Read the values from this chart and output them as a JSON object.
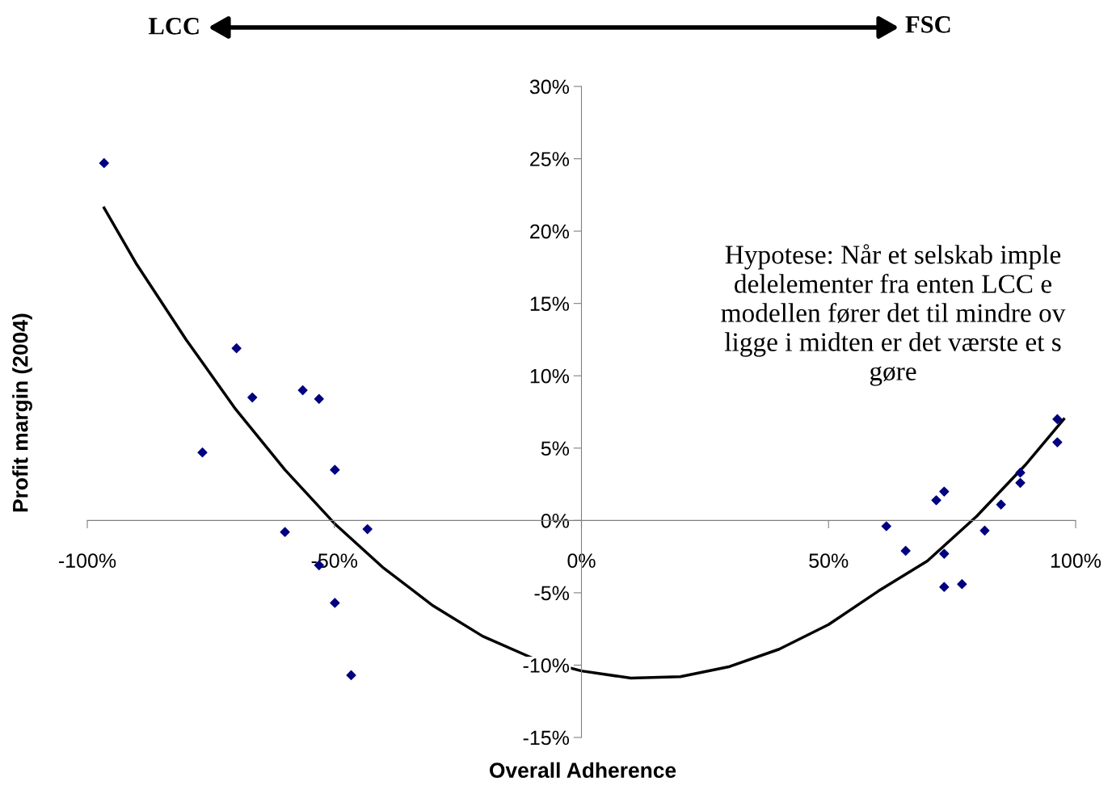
{
  "chart_data": {
    "type": "scatter",
    "xlabel": "Overall Adherence",
    "ylabel": "Profit margin (2004)",
    "xlim": [
      -100,
      100
    ],
    "ylim": [
      -15,
      30
    ],
    "xticks": [
      {
        "value": -100,
        "label": "-100%"
      },
      {
        "value": -50,
        "label": "-50%"
      },
      {
        "value": 0,
        "label": "0%"
      },
      {
        "value": 50,
        "label": "50%"
      },
      {
        "value": 100,
        "label": "100%"
      }
    ],
    "yticks": [
      {
        "value": -15,
        "label": "-15%"
      },
      {
        "value": -10,
        "label": "-10%"
      },
      {
        "value": -5,
        "label": "-5%"
      },
      {
        "value": 0,
        "label": "0%"
      },
      {
        "value": 5,
        "label": "5%"
      },
      {
        "value": 10,
        "label": "10%"
      },
      {
        "value": 15,
        "label": "15%"
      },
      {
        "value": 20,
        "label": "20%"
      },
      {
        "value": 25,
        "label": "25%"
      },
      {
        "value": 30,
        "label": "30%"
      }
    ],
    "grid": false,
    "marker": "diamond",
    "series": [
      {
        "color": "#000080",
        "x": [
          -96.6,
          -69.8,
          -76.7,
          -66.6,
          -56.4,
          -53.1,
          -60.0,
          -49.9,
          -43.3,
          -53.1,
          -49.9,
          -46.6,
          61.7,
          65.6,
          71.8,
          73.4,
          73.4,
          73.4,
          77.0,
          81.6,
          84.9,
          88.8,
          88.8,
          96.3,
          96.3
        ],
        "values": [
          24.7,
          11.9,
          4.7,
          8.5,
          9.0,
          8.4,
          -0.8,
          3.5,
          -0.6,
          -3.1,
          -5.7,
          -10.7,
          -0.4,
          -2.1,
          1.4,
          2.0,
          -2.3,
          -4.6,
          -4.4,
          -0.7,
          1.1,
          2.6,
          3.3,
          7.0,
          5.4
        ]
      },
      {
        "type": "line",
        "color": "#000000",
        "marker": "none",
        "x": [
          -96.6,
          -90,
          -80,
          -70,
          -60,
          -50,
          -40,
          -30,
          -20,
          -10,
          0,
          10,
          20,
          30,
          40,
          50,
          60,
          70,
          80,
          90,
          97.6
        ],
        "values": [
          21.6,
          17.7,
          12.5,
          7.7,
          3.5,
          -0.2,
          -3.3,
          -5.9,
          -8.0,
          -9.5,
          -10.4,
          -10.9,
          -10.8,
          -10.1,
          -8.9,
          -7.2,
          -4.9,
          -2.8,
          0.3,
          3.9,
          7.0
        ]
      }
    ],
    "annotations": [
      "LCC",
      "FSC",
      "Hypotese: Når et selskab imple\ndelelementer fra enten LCC e\nmodellen fører det til mindre ov\nligge i midten er det værste et s\ngøre"
    ]
  }
}
